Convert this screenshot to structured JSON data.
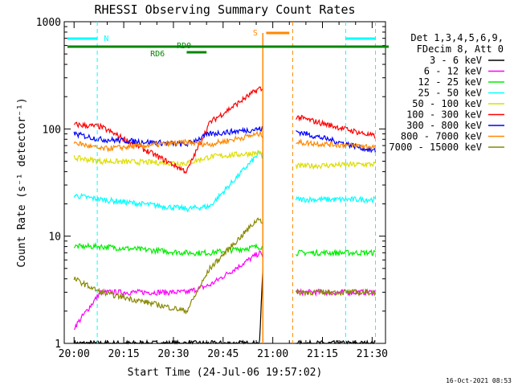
{
  "chart_data": {
    "type": "line",
    "title": "RHESSI Observing Summary Count Rates",
    "xlabel": "Start Time (24-Jul-06 19:57:02)",
    "ylabel": "Count Rate (s⁻¹ detector⁻¹)",
    "yscale": "log",
    "ylim": [
      1,
      1000
    ],
    "xlim_minutes_after_19_57_02": [
      0,
      97
    ],
    "x_ticks": [
      "20:00",
      "20:15",
      "20:30",
      "20:45",
      "21:00",
      "21:15",
      "21:30"
    ],
    "y_ticks": [
      "1",
      "10",
      "100",
      "1000"
    ],
    "legend_header": [
      "Det 1,3,4,5,6,9,",
      "FDecim 8, Att 0"
    ],
    "legend_position": "right",
    "timestamp": "16-Oct-2021 08:53",
    "series": [
      {
        "name": "3 - 6 keV",
        "color": "#000000",
        "x": [
          "20:00",
          "20:08",
          "20:34",
          "20:41",
          "20:56",
          "20:57",
          "21:07",
          "21:31"
        ],
        "y": [
          1,
          1,
          1,
          1,
          1,
          5,
          1,
          1
        ]
      },
      {
        "name": "6 - 12 keV",
        "color": "#ff00ff",
        "x": [
          "20:00",
          "20:08",
          "20:34",
          "20:41",
          "20:56",
          "21:07",
          "21:31"
        ],
        "y": [
          1.4,
          3.0,
          3.0,
          3.5,
          7.0,
          3.0,
          3.0
        ]
      },
      {
        "name": "12 - 25 keV",
        "color": "#00ee00",
        "x": [
          "20:00",
          "20:08",
          "20:34",
          "20:41",
          "20:56",
          "21:07",
          "21:31"
        ],
        "y": [
          8,
          8,
          7,
          7,
          8,
          7,
          7
        ]
      },
      {
        "name": "25 - 50 keV",
        "color": "#00ffff",
        "x": [
          "20:00",
          "20:08",
          "20:34",
          "20:41",
          "20:56",
          "21:07",
          "21:31"
        ],
        "y": [
          24,
          22,
          18,
          19,
          60,
          22,
          22
        ]
      },
      {
        "name": "50 - 100 keV",
        "color": "#dddd00",
        "x": [
          "20:00",
          "20:08",
          "20:34",
          "20:41",
          "20:56",
          "21:07",
          "21:31"
        ],
        "y": [
          54,
          50,
          48,
          55,
          60,
          45,
          47
        ]
      },
      {
        "name": "100 - 300 keV",
        "color": "#ff0000",
        "x": [
          "20:00",
          "20:08",
          "20:34",
          "20:41",
          "20:56",
          "21:07",
          "21:31"
        ],
        "y": [
          110,
          105,
          40,
          115,
          240,
          130,
          85
        ]
      },
      {
        "name": "300 - 800 keV",
        "color": "#0000ff",
        "x": [
          "20:00",
          "20:08",
          "20:34",
          "20:41",
          "20:56",
          "21:07",
          "21:31"
        ],
        "y": [
          90,
          80,
          72,
          90,
          100,
          95,
          62
        ]
      },
      {
        "name": "800 - 7000 keV",
        "color": "#ff8800",
        "x": [
          "20:00",
          "20:08",
          "20:34",
          "20:41",
          "20:56",
          "21:07",
          "21:31"
        ],
        "y": [
          75,
          65,
          75,
          72,
          90,
          75,
          68
        ]
      },
      {
        "name": "7000 - 15000 keV",
        "color": "#888800",
        "x": [
          "20:00",
          "20:08",
          "20:34",
          "20:41",
          "20:56",
          "21:07",
          "21:31"
        ],
        "y": [
          4,
          3,
          2,
          5,
          15,
          3,
          3
        ]
      }
    ],
    "annotations": [
      {
        "label": "N",
        "color": "#00ffff",
        "kind": "night"
      },
      {
        "label": "S",
        "color": "#ff8800",
        "kind": "SAA"
      },
      {
        "label": "RD0",
        "color": "#008800",
        "kind": "rate decimation"
      },
      {
        "label": "RD6",
        "color": "#008800",
        "kind": "rate decimation"
      }
    ]
  }
}
